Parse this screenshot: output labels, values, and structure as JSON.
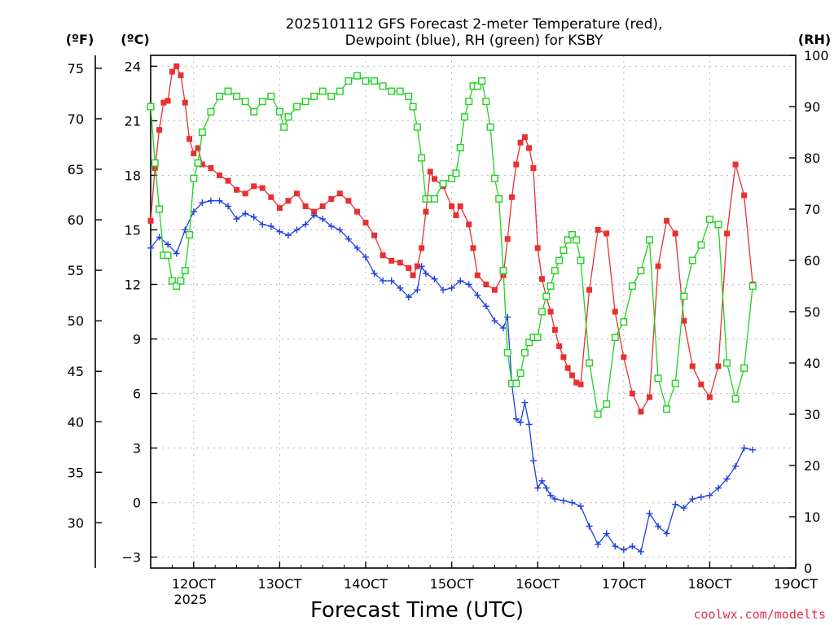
{
  "chart_data": {
    "type": "line",
    "title_line1": "2025101112 GFS Forecast 2-meter Temperature (red),",
    "title_line2": "Dewpoint (blue), RH (green) for KSBY",
    "xlabel": "Forecast Time (UTC)",
    "watermark": "coolwx.com/modelts",
    "unit_left_f": "(ºF)",
    "unit_left_c": "(ºC)",
    "unit_right": "(RH)",
    "xlim": [
      11.5,
      19.0
    ],
    "ylim_c": [
      -3.6,
      24.6
    ],
    "ylim_f": [
      25.52,
      76.28
    ],
    "ylim_rh": [
      0,
      100
    ],
    "x_ticks": [
      {
        "v": 12,
        "label": "12OCT",
        "sub": "2025"
      },
      {
        "v": 13,
        "label": "13OCT",
        "sub": ""
      },
      {
        "v": 14,
        "label": "14OCT",
        "sub": ""
      },
      {
        "v": 15,
        "label": "15OCT",
        "sub": ""
      },
      {
        "v": 16,
        "label": "16OCT",
        "sub": ""
      },
      {
        "v": 17,
        "label": "17OCT",
        "sub": ""
      },
      {
        "v": 18,
        "label": "18OCT",
        "sub": ""
      },
      {
        "v": 19,
        "label": "19OCT",
        "sub": ""
      }
    ],
    "c_ticks": [
      -3,
      0,
      3,
      6,
      9,
      12,
      15,
      18,
      21,
      24
    ],
    "f_ticks": [
      30,
      35,
      40,
      45,
      50,
      55,
      60,
      65,
      70,
      75
    ],
    "rh_ticks": [
      0,
      10,
      20,
      30,
      40,
      50,
      60,
      70,
      80,
      90,
      100
    ],
    "series": [
      {
        "name": "Temperature",
        "unit": "C",
        "color": "#e83030",
        "marker": "filled-square",
        "points": [
          [
            11.5,
            15.5
          ],
          [
            11.55,
            18.4
          ],
          [
            11.6,
            20.5
          ],
          [
            11.65,
            22.0
          ],
          [
            11.7,
            22.1
          ],
          [
            11.75,
            23.7
          ],
          [
            11.8,
            24.0
          ],
          [
            11.85,
            23.5
          ],
          [
            11.9,
            22.0
          ],
          [
            11.95,
            20.0
          ],
          [
            12.0,
            19.2
          ],
          [
            12.05,
            19.5
          ],
          [
            12.1,
            18.6
          ],
          [
            12.2,
            18.4
          ],
          [
            12.3,
            18.0
          ],
          [
            12.4,
            17.7
          ],
          [
            12.5,
            17.2
          ],
          [
            12.6,
            17.0
          ],
          [
            12.7,
            17.4
          ],
          [
            12.8,
            17.3
          ],
          [
            12.9,
            16.8
          ],
          [
            13.0,
            16.2
          ],
          [
            13.1,
            16.6
          ],
          [
            13.2,
            17.0
          ],
          [
            13.3,
            16.3
          ],
          [
            13.4,
            16.0
          ],
          [
            13.5,
            16.3
          ],
          [
            13.6,
            16.7
          ],
          [
            13.7,
            17.0
          ],
          [
            13.8,
            16.6
          ],
          [
            13.9,
            16.0
          ],
          [
            14.0,
            15.4
          ],
          [
            14.1,
            14.7
          ],
          [
            14.2,
            13.6
          ],
          [
            14.3,
            13.3
          ],
          [
            14.4,
            13.2
          ],
          [
            14.5,
            12.9
          ],
          [
            14.55,
            12.5
          ],
          [
            14.6,
            13.0
          ],
          [
            14.65,
            14.0
          ],
          [
            14.7,
            16.0
          ],
          [
            14.75,
            18.2
          ],
          [
            14.8,
            17.8
          ],
          [
            14.9,
            17.4
          ],
          [
            15.0,
            16.3
          ],
          [
            15.05,
            15.8
          ],
          [
            15.1,
            16.3
          ],
          [
            15.2,
            15.3
          ],
          [
            15.25,
            14.0
          ],
          [
            15.3,
            12.5
          ],
          [
            15.4,
            12.0
          ],
          [
            15.5,
            11.7
          ],
          [
            15.6,
            12.5
          ],
          [
            15.65,
            14.5
          ],
          [
            15.7,
            16.8
          ],
          [
            15.75,
            18.6
          ],
          [
            15.8,
            19.8
          ],
          [
            15.85,
            20.1
          ],
          [
            15.9,
            19.5
          ],
          [
            15.95,
            18.4
          ],
          [
            16.0,
            14.0
          ],
          [
            16.05,
            12.3
          ],
          [
            16.1,
            11.3
          ],
          [
            16.15,
            10.5
          ],
          [
            16.2,
            9.5
          ],
          [
            16.25,
            8.6
          ],
          [
            16.3,
            8.0
          ],
          [
            16.35,
            7.4
          ],
          [
            16.4,
            7.0
          ],
          [
            16.45,
            6.6
          ],
          [
            16.5,
            6.5
          ],
          [
            16.6,
            11.7
          ],
          [
            16.7,
            15.0
          ],
          [
            16.8,
            14.8
          ],
          [
            16.9,
            10.5
          ],
          [
            17.0,
            8.0
          ],
          [
            17.1,
            6.0
          ],
          [
            17.2,
            5.0
          ],
          [
            17.3,
            5.8
          ],
          [
            17.4,
            13.0
          ],
          [
            17.5,
            15.5
          ],
          [
            17.6,
            14.8
          ],
          [
            17.7,
            10.0
          ],
          [
            17.8,
            7.5
          ],
          [
            17.9,
            6.5
          ],
          [
            18.0,
            5.8
          ],
          [
            18.1,
            7.5
          ],
          [
            18.2,
            14.8
          ],
          [
            18.3,
            18.6
          ],
          [
            18.4,
            16.9
          ],
          [
            18.5,
            12.0
          ]
        ]
      },
      {
        "name": "Dewpoint",
        "unit": "C",
        "color": "#1f3fe0",
        "marker": "plus",
        "points": [
          [
            11.5,
            14.0
          ],
          [
            11.6,
            14.6
          ],
          [
            11.7,
            14.2
          ],
          [
            11.8,
            13.7
          ],
          [
            11.9,
            15.0
          ],
          [
            12.0,
            16.0
          ],
          [
            12.1,
            16.5
          ],
          [
            12.2,
            16.6
          ],
          [
            12.3,
            16.6
          ],
          [
            12.4,
            16.3
          ],
          [
            12.5,
            15.6
          ],
          [
            12.6,
            15.9
          ],
          [
            12.7,
            15.7
          ],
          [
            12.8,
            15.3
          ],
          [
            12.9,
            15.2
          ],
          [
            13.0,
            14.9
          ],
          [
            13.1,
            14.7
          ],
          [
            13.2,
            15.0
          ],
          [
            13.3,
            15.3
          ],
          [
            13.4,
            15.8
          ],
          [
            13.5,
            15.6
          ],
          [
            13.6,
            15.2
          ],
          [
            13.7,
            15.0
          ],
          [
            13.8,
            14.5
          ],
          [
            13.9,
            14.0
          ],
          [
            14.0,
            13.5
          ],
          [
            14.1,
            12.6
          ],
          [
            14.2,
            12.2
          ],
          [
            14.3,
            12.2
          ],
          [
            14.4,
            11.8
          ],
          [
            14.5,
            11.3
          ],
          [
            14.6,
            11.7
          ],
          [
            14.65,
            13.0
          ],
          [
            14.7,
            12.6
          ],
          [
            14.8,
            12.3
          ],
          [
            14.9,
            11.7
          ],
          [
            15.0,
            11.8
          ],
          [
            15.1,
            12.2
          ],
          [
            15.2,
            12.0
          ],
          [
            15.3,
            11.4
          ],
          [
            15.4,
            10.8
          ],
          [
            15.5,
            10.0
          ],
          [
            15.6,
            9.6
          ],
          [
            15.65,
            10.2
          ],
          [
            15.7,
            6.5
          ],
          [
            15.75,
            4.6
          ],
          [
            15.8,
            4.4
          ],
          [
            15.85,
            5.5
          ],
          [
            15.9,
            4.3
          ],
          [
            15.95,
            2.3
          ],
          [
            16.0,
            0.8
          ],
          [
            16.05,
            1.2
          ],
          [
            16.1,
            0.8
          ],
          [
            16.15,
            0.4
          ],
          [
            16.2,
            0.2
          ],
          [
            16.3,
            0.1
          ],
          [
            16.4,
            0.0
          ],
          [
            16.5,
            -0.2
          ],
          [
            16.6,
            -1.3
          ],
          [
            16.7,
            -2.3
          ],
          [
            16.8,
            -1.7
          ],
          [
            16.9,
            -2.4
          ],
          [
            17.0,
            -2.6
          ],
          [
            17.1,
            -2.4
          ],
          [
            17.2,
            -2.7
          ],
          [
            17.3,
            -0.6
          ],
          [
            17.4,
            -1.3
          ],
          [
            17.5,
            -1.7
          ],
          [
            17.6,
            -0.1
          ],
          [
            17.7,
            -0.3
          ],
          [
            17.8,
            0.2
          ],
          [
            17.9,
            0.3
          ],
          [
            18.0,
            0.4
          ],
          [
            18.1,
            0.8
          ],
          [
            18.2,
            1.3
          ],
          [
            18.3,
            2.0
          ],
          [
            18.4,
            3.0
          ],
          [
            18.5,
            2.9
          ]
        ]
      },
      {
        "name": "RH",
        "unit": "%",
        "color": "#20d020",
        "marker": "open-square",
        "points": [
          [
            11.5,
            90.0
          ],
          [
            11.55,
            79.0
          ],
          [
            11.6,
            70.0
          ],
          [
            11.65,
            61.0
          ],
          [
            11.7,
            61.0
          ],
          [
            11.75,
            56.0
          ],
          [
            11.8,
            55.0
          ],
          [
            11.85,
            56.0
          ],
          [
            11.9,
            58.0
          ],
          [
            11.95,
            65.0
          ],
          [
            12.0,
            76.0
          ],
          [
            12.05,
            79.0
          ],
          [
            12.1,
            85.0
          ],
          [
            12.2,
            89.0
          ],
          [
            12.3,
            92.0
          ],
          [
            12.4,
            93.0
          ],
          [
            12.5,
            92.0
          ],
          [
            12.6,
            91.0
          ],
          [
            12.7,
            89.0
          ],
          [
            12.8,
            91.0
          ],
          [
            12.9,
            92.0
          ],
          [
            13.0,
            89.0
          ],
          [
            13.05,
            86.0
          ],
          [
            13.1,
            88.0
          ],
          [
            13.2,
            90.0
          ],
          [
            13.3,
            91.0
          ],
          [
            13.4,
            92.0
          ],
          [
            13.5,
            93.0
          ],
          [
            13.6,
            92.0
          ],
          [
            13.7,
            93.0
          ],
          [
            13.8,
            95.0
          ],
          [
            13.9,
            96.0
          ],
          [
            14.0,
            95.0
          ],
          [
            14.1,
            95.0
          ],
          [
            14.2,
            94.0
          ],
          [
            14.3,
            93.0
          ],
          [
            14.4,
            93.0
          ],
          [
            14.5,
            92.0
          ],
          [
            14.55,
            90.0
          ],
          [
            14.6,
            86.0
          ],
          [
            14.65,
            80.0
          ],
          [
            14.7,
            72.0
          ],
          [
            14.75,
            72.0
          ],
          [
            14.8,
            72.0
          ],
          [
            14.9,
            75.0
          ],
          [
            15.0,
            76.0
          ],
          [
            15.05,
            77.0
          ],
          [
            15.1,
            82.0
          ],
          [
            15.15,
            88.0
          ],
          [
            15.2,
            91.0
          ],
          [
            15.25,
            94.0
          ],
          [
            15.3,
            94.0
          ],
          [
            15.35,
            95.0
          ],
          [
            15.4,
            91.0
          ],
          [
            15.45,
            86.0
          ],
          [
            15.5,
            76.0
          ],
          [
            15.55,
            72.0
          ],
          [
            15.6,
            58.0
          ],
          [
            15.65,
            42.0
          ],
          [
            15.7,
            36.0
          ],
          [
            15.75,
            36.0
          ],
          [
            15.8,
            38.0
          ],
          [
            15.85,
            42.0
          ],
          [
            15.9,
            44.0
          ],
          [
            15.95,
            45.0
          ],
          [
            16.0,
            45.0
          ],
          [
            16.05,
            50.0
          ],
          [
            16.1,
            53.0
          ],
          [
            16.15,
            55.0
          ],
          [
            16.2,
            58.0
          ],
          [
            16.25,
            60.0
          ],
          [
            16.3,
            62.0
          ],
          [
            16.35,
            64.0
          ],
          [
            16.4,
            65.0
          ],
          [
            16.45,
            64.0
          ],
          [
            16.5,
            60.0
          ],
          [
            16.6,
            40.0
          ],
          [
            16.7,
            30.0
          ],
          [
            16.8,
            32.0
          ],
          [
            16.9,
            45.0
          ],
          [
            17.0,
            48.0
          ],
          [
            17.1,
            55.0
          ],
          [
            17.2,
            58.0
          ],
          [
            17.3,
            64.0
          ],
          [
            17.4,
            37.0
          ],
          [
            17.5,
            31.0
          ],
          [
            17.6,
            36.0
          ],
          [
            17.7,
            53.0
          ],
          [
            17.8,
            60.0
          ],
          [
            17.9,
            63.0
          ],
          [
            18.0,
            68.0
          ],
          [
            18.1,
            67.0
          ],
          [
            18.2,
            40.0
          ],
          [
            18.3,
            33.0
          ],
          [
            18.4,
            39.0
          ],
          [
            18.5,
            55.0
          ]
        ]
      }
    ]
  }
}
